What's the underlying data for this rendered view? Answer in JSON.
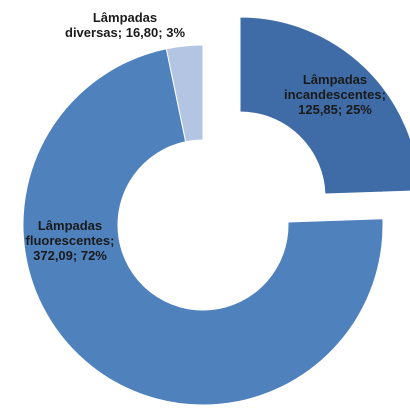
{
  "chart_data": {
    "type": "donut",
    "categories": [
      "Lâmpadas incandescentes",
      "Lâmpadas fluorescentes",
      "Lâmpadas diversas"
    ],
    "values": [
      125.85,
      372.09,
      16.8
    ],
    "value_labels": [
      "125,85",
      "372,09",
      "16,80"
    ],
    "percent_labels": [
      "25%",
      "72%",
      "3%"
    ],
    "colors": [
      "#3f6ca6",
      "#4f81bd",
      "#b3c5e2"
    ]
  }
}
